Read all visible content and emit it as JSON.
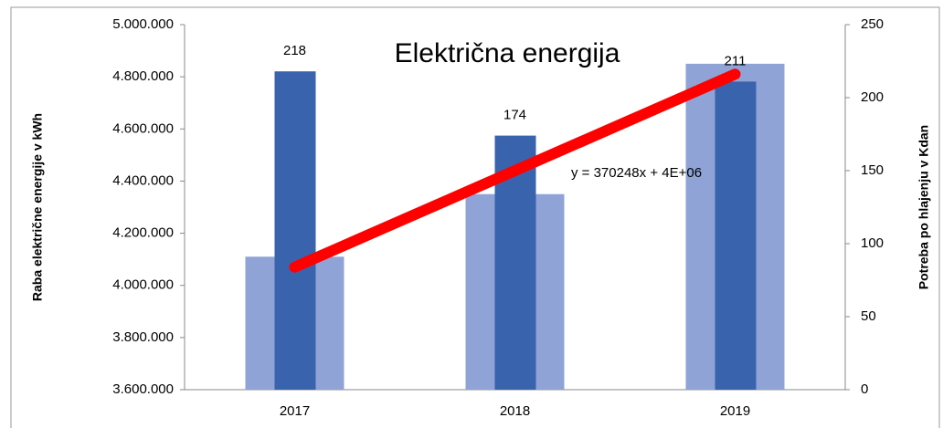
{
  "chart_data": {
    "type": "bar",
    "title": "Električna energija",
    "y_label": "Raba električne energije v kWh",
    "y2_label": "Potreba po hlajenju v Kdan",
    "annotation": "y = 370248x + 4E+06",
    "categories": [
      "2017",
      "2018",
      "2019"
    ],
    "series": [
      {
        "color": "#8fa3d6",
        "values": [
          4110000,
          4350000,
          4850000
        ]
      },
      {
        "color": "#3a63ad",
        "axis": "y2",
        "values": [
          218,
          174,
          211
        ]
      }
    ],
    "trendline": {
      "type": "line",
      "color": "#ff0000",
      "values": [
        4070000,
        4440000,
        4810000
      ]
    },
    "ylim": [
      3600000,
      5000000
    ],
    "yticks": [
      {
        "value": 3600000,
        "label": "3.600.000"
      },
      {
        "value": 3800000,
        "label": "3.800.000"
      },
      {
        "value": 4000000,
        "label": "4.000.000"
      },
      {
        "value": 4200000,
        "label": "4.200.000"
      },
      {
        "value": 4400000,
        "label": "4.400.000"
      },
      {
        "value": 4600000,
        "label": "4.600.000"
      },
      {
        "value": 4800000,
        "label": "4.800.000"
      },
      {
        "value": 5000000,
        "label": "5.000.000"
      }
    ],
    "y2lim": [
      0,
      250
    ],
    "y2ticks": [
      0,
      50,
      100,
      150,
      200,
      250
    ],
    "grid": false
  }
}
